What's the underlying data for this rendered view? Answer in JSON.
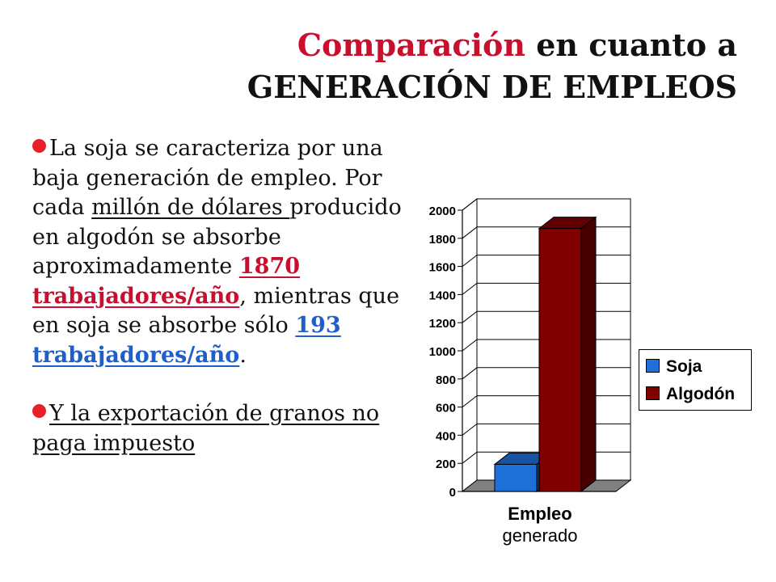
{
  "slide": {
    "title_highlight": "Comparación",
    "title_rest": " en cuanto a",
    "title_line2": "GENERACIÓN DE EMPLEOS",
    "p1_a": "La soja se caracteriza por una baja generación de empleo. Por cada ",
    "p1_b": "millón de dólares ",
    "p1_c": "producido en algodón se absorbe aproximadamente ",
    "p1_d": "1870 trabajadores/año",
    "p1_e": ", mientras que en soja se absorbe sólo ",
    "p1_f": "193 trabajadores/año",
    "p1_g": ".",
    "p2": "Y la exportación de granos no paga impuesto"
  },
  "colors": {
    "title_accent": "#c8102e",
    "bullet": "#e8202a",
    "blue_value": "#1f5fc8",
    "soja": "#1f6fd8",
    "algodon": "#800000"
  },
  "chart_data": {
    "type": "bar",
    "categories": [
      "Empleo generado"
    ],
    "category_label_lines": [
      "Empleo",
      "generado"
    ],
    "series": [
      {
        "name": "Soja",
        "values": [
          193
        ],
        "color": "#1f6fd8"
      },
      {
        "name": "Algodón",
        "values": [
          1870
        ],
        "color": "#800000"
      }
    ],
    "ylim": [
      0,
      2000
    ],
    "yticks": [
      0,
      200,
      400,
      600,
      800,
      1000,
      1200,
      1400,
      1600,
      1800,
      2000
    ],
    "grid": true,
    "three_d": true,
    "legend_position": "right"
  }
}
